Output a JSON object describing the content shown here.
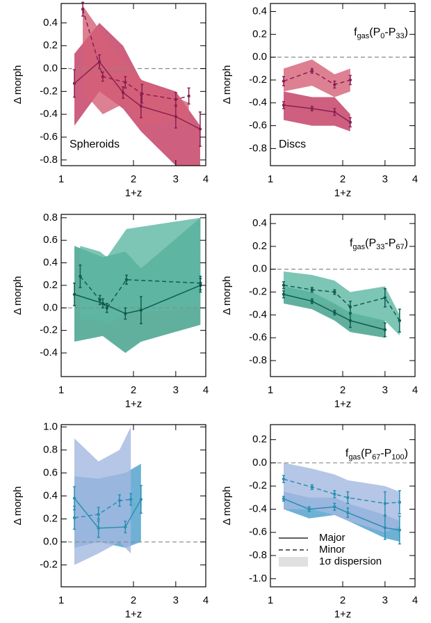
{
  "chart_data": [
    {
      "type": "line",
      "xlabel": "1+z",
      "ylabel": "Δ morph",
      "log_x": true,
      "zero_line": true,
      "xlim": [
        1,
        4
      ],
      "xticks": [
        1,
        2,
        3,
        4
      ],
      "ylim": [
        -0.85,
        0.57
      ],
      "yticks": [
        0.4,
        0.2,
        {
          "value": 0,
          "label": "0.0"
        },
        -0.2,
        -0.4,
        -0.6,
        -0.8
      ],
      "labels": [
        {
          "corner": "lower left",
          "runs": [
            {
              "text": "Spheroids"
            }
          ]
        }
      ],
      "series": [
        {
          "style": "solid",
          "color": "#8a1f52",
          "band_color": "#c2375e",
          "x": [
            1.135,
            1.443,
            1.81,
            2.15,
            3.0,
            3.79
          ],
          "values": [
            -0.13,
            0.06,
            -0.21,
            -0.33,
            -0.42,
            -0.53
          ],
          "errors": [
            0.12,
            0.06,
            0.05,
            0.1,
            0.1,
            0.15
          ],
          "band_lower": [
            -0.5,
            -0.2,
            -0.35,
            -0.55,
            -0.85,
            -0.85
          ],
          "band_upper": [
            0.13,
            0.4,
            0.2,
            -0.1,
            -0.2,
            -0.5
          ]
        },
        {
          "style": "dashed",
          "color": "#8a1f52",
          "band_color": "#d46077",
          "x": [
            1.23,
            1.49,
            1.85,
            2.17,
            3.0,
            3.4
          ],
          "values": [
            0.52,
            -0.07,
            -0.12,
            -0.22,
            -0.27,
            -0.24
          ],
          "errors": [
            0.06,
            0.04,
            0.05,
            0.08,
            0.06,
            0.07
          ],
          "band_lower": [
            -0.2,
            -0.4,
            -0.3,
            -0.5,
            -0.45,
            -0.5
          ],
          "band_upper": [
            0.55,
            0.3,
            0.05,
            -0.1,
            -0.25,
            -0.3
          ]
        }
      ]
    },
    {
      "type": "line",
      "xlabel": "1+z",
      "ylabel": "Δ morph",
      "log_x": true,
      "zero_line": true,
      "xlim": [
        1,
        4
      ],
      "xticks": [
        1,
        2,
        3,
        4
      ],
      "ylim": [
        -0.95,
        0.47
      ],
      "yticks": [
        0.4,
        0.2,
        {
          "value": 0,
          "label": "0.0"
        },
        -0.2,
        -0.4,
        -0.6,
        -0.8
      ],
      "labels": [
        {
          "corner": "lower left",
          "runs": [
            {
              "text": "Discs"
            }
          ]
        },
        {
          "corner": "upper right",
          "runs": [
            {
              "text": "f"
            },
            {
              "text": "gas",
              "sub": true
            },
            {
              "text": "(P"
            },
            {
              "text": "0",
              "sub": true
            },
            {
              "text": "-P"
            },
            {
              "text": "33",
              "sub": true
            },
            {
              "text": ")"
            }
          ]
        }
      ],
      "series": [
        {
          "style": "solid",
          "color": "#8a1f52",
          "band_color": "#c2375e",
          "x": [
            1.135,
            1.49,
            1.85,
            2.15
          ],
          "values": [
            -0.42,
            -0.45,
            -0.48,
            -0.57
          ],
          "errors": [
            0.03,
            0.02,
            0.03,
            0.04
          ],
          "band_lower": [
            -0.55,
            -0.6,
            -0.6,
            -0.65
          ],
          "band_upper": [
            -0.3,
            -0.35,
            -0.35,
            -0.5
          ]
        },
        {
          "style": "dashed",
          "color": "#8a1f52",
          "band_color": "#d46077",
          "x": [
            1.135,
            1.49,
            1.85,
            2.15
          ],
          "values": [
            -0.21,
            -0.12,
            -0.24,
            -0.2
          ],
          "errors": [
            0.04,
            0.02,
            0.03,
            0.04
          ],
          "band_lower": [
            -0.3,
            -0.25,
            -0.35,
            -0.3
          ],
          "band_upper": [
            -0.1,
            -0.02,
            -0.15,
            -0.1
          ]
        }
      ]
    },
    {
      "type": "line",
      "xlabel": "1+z",
      "ylabel": "Δ morph",
      "log_x": true,
      "zero_line": true,
      "xlim": [
        1,
        4
      ],
      "xticks": [
        1,
        2,
        3,
        4
      ],
      "ylim": [
        -0.61,
        0.83
      ],
      "yticks": [
        0.8,
        0.6,
        0.4,
        0.2,
        {
          "value": 0,
          "label": "0.0"
        },
        -0.2,
        -0.4
      ],
      "labels": [],
      "series": [
        {
          "style": "solid",
          "color": "#0f5c4f",
          "band_color": "#3a9c86",
          "x": [
            1.135,
            1.49,
            1.85,
            2.15,
            3.8
          ],
          "values": [
            0.12,
            0.04,
            -0.05,
            -0.02,
            0.2
          ],
          "errors": [
            0.1,
            0.04,
            0.05,
            0.12,
            0.06
          ],
          "band_lower": [
            -0.3,
            -0.25,
            -0.4,
            -0.3,
            -0.15
          ],
          "band_upper": [
            0.55,
            0.45,
            0.5,
            0.35,
            0.8
          ]
        },
        {
          "style": "dashed",
          "color": "#0f5c4f",
          "band_color": "#5db6a2",
          "x": [
            1.2,
            1.45,
            1.55,
            1.87,
            3.8
          ],
          "values": [
            0.28,
            0.07,
            0.0,
            0.25,
            0.22
          ],
          "errors": [
            0.1,
            0.04,
            0.04,
            0.04,
            0.06
          ],
          "band_lower": [
            -0.1,
            -0.1,
            -0.15,
            -0.05,
            0.0
          ],
          "band_upper": [
            0.55,
            0.5,
            0.45,
            0.7,
            0.8
          ]
        }
      ]
    },
    {
      "type": "line",
      "xlabel": "1+z",
      "ylabel": "Δ morph",
      "log_x": true,
      "zero_line": true,
      "xlim": [
        1,
        4
      ],
      "xticks": [
        1,
        2,
        3,
        4
      ],
      "ylim": [
        -0.94,
        0.48
      ],
      "yticks": [
        0.4,
        0.2,
        {
          "value": 0,
          "label": "0.0"
        },
        -0.2,
        -0.4,
        -0.6,
        -0.8
      ],
      "labels": [
        {
          "corner": "upper right",
          "runs": [
            {
              "text": "f"
            },
            {
              "text": "gas",
              "sub": true
            },
            {
              "text": "(P"
            },
            {
              "text": "33",
              "sub": true
            },
            {
              "text": "-P"
            },
            {
              "text": "67",
              "sub": true
            },
            {
              "text": ")"
            }
          ]
        }
      ],
      "series": [
        {
          "style": "solid",
          "color": "#0f5c4f",
          "band_color": "#3a9c86",
          "x": [
            1.135,
            1.49,
            1.85,
            2.15,
            3.0
          ],
          "values": [
            -0.22,
            -0.28,
            -0.38,
            -0.45,
            -0.53
          ],
          "errors": [
            0.03,
            0.02,
            0.02,
            0.06,
            0.06
          ],
          "band_lower": [
            -0.3,
            -0.35,
            -0.45,
            -0.55,
            -0.6
          ],
          "band_upper": [
            -0.15,
            -0.2,
            -0.3,
            -0.38,
            -0.45
          ]
        },
        {
          "style": "dashed",
          "color": "#0f5c4f",
          "band_color": "#5db6a2",
          "x": [
            1.135,
            1.49,
            1.85,
            2.15,
            3.0,
            3.45
          ],
          "values": [
            -0.14,
            -0.18,
            -0.2,
            -0.33,
            -0.25,
            -0.45
          ],
          "errors": [
            0.03,
            0.02,
            0.02,
            0.05,
            0.08,
            0.1
          ],
          "band_lower": [
            -0.25,
            -0.3,
            -0.3,
            -0.45,
            -0.45,
            -0.58
          ],
          "band_upper": [
            -0.02,
            -0.05,
            -0.1,
            -0.2,
            -0.15,
            -0.4
          ]
        }
      ]
    },
    {
      "type": "line",
      "xlabel": "1+z",
      "ylabel": "Δ morph",
      "log_x": true,
      "zero_line": true,
      "xlim": [
        1,
        4
      ],
      "xticks": [
        1,
        2,
        3,
        4
      ],
      "ylim": [
        -0.39,
        1.02
      ],
      "yticks": [
        {
          "value": 1,
          "label": "1.0"
        },
        0.8,
        0.6,
        0.4,
        0.2,
        {
          "value": 0,
          "label": "0.0"
        },
        -0.2
      ],
      "labels": [],
      "series": [
        {
          "style": "solid",
          "color": "#2a8fb0",
          "band_color": "#4a9ecb",
          "x": [
            1.135,
            1.43,
            1.85,
            2.15
          ],
          "values": [
            0.38,
            0.12,
            0.13,
            0.37
          ],
          "errors": [
            0.1,
            0.08,
            0.05,
            0.12
          ],
          "band_lower": [
            -0.05,
            0.0,
            -0.05,
            0.0
          ],
          "band_upper": [
            0.57,
            0.55,
            0.6,
            0.68
          ]
        },
        {
          "style": "dashed",
          "color": "#2a8fb0",
          "band_color": "#a3b8e0",
          "x": [
            1.135,
            1.43,
            1.75,
            1.95
          ],
          "values": [
            0.21,
            0.24,
            0.36,
            0.37
          ],
          "errors": [
            0.1,
            0.06,
            0.05,
            0.05
          ],
          "band_lower": [
            -0.2,
            -0.1,
            0.0,
            -0.1
          ],
          "band_upper": [
            0.9,
            0.7,
            0.8,
            1.0
          ]
        }
      ]
    },
    {
      "type": "line",
      "xlabel": "1+z",
      "ylabel": "Δ morph",
      "log_x": true,
      "zero_line": true,
      "xlim": [
        1,
        4
      ],
      "xticks": [
        1,
        2,
        3,
        4
      ],
      "ylim": [
        -1.07,
        0.33
      ],
      "yticks": [
        0.2,
        {
          "value": 0,
          "label": "0.0"
        },
        -0.2,
        -0.4,
        -0.6,
        -0.8,
        {
          "value": -1,
          "label": "-1.0"
        }
      ],
      "labels": [
        {
          "corner": "upper right",
          "runs": [
            {
              "text": "f"
            },
            {
              "text": "gas",
              "sub": true
            },
            {
              "text": "(P"
            },
            {
              "text": "67",
              "sub": true
            },
            {
              "text": "-P"
            },
            {
              "text": "100",
              "sub": true
            },
            {
              "text": ")"
            }
          ]
        }
      ],
      "legend": "lower left",
      "band_label": "1σ dispersion",
      "legend_band_color": "#e0e0e0",
      "series": [
        {
          "name": "Major",
          "style": "solid",
          "color": "#2a8fb0",
          "band_color": "#4a9ecb",
          "x": [
            1.135,
            1.45,
            1.85,
            2.1,
            3.0,
            3.45
          ],
          "values": [
            -0.31,
            -0.4,
            -0.38,
            -0.43,
            -0.56,
            -0.58
          ],
          "errors": [
            0.02,
            0.02,
            0.03,
            0.04,
            0.1,
            0.12
          ],
          "band_lower": [
            -0.4,
            -0.48,
            -0.45,
            -0.5,
            -0.65,
            -0.68
          ],
          "band_upper": [
            -0.25,
            -0.3,
            -0.3,
            -0.35,
            -0.45,
            -0.5
          ]
        },
        {
          "name": "Minor",
          "style": "dashed",
          "color": "#2a8fb0",
          "band_color": "#a3b8e0",
          "x": [
            1.135,
            1.49,
            1.85,
            2.1,
            3.0,
            3.45
          ],
          "values": [
            -0.14,
            -0.21,
            -0.27,
            -0.3,
            -0.35,
            -0.34
          ],
          "errors": [
            0.03,
            0.02,
            0.03,
            0.05,
            0.1,
            0.1
          ],
          "band_lower": [
            -0.4,
            -0.4,
            -0.45,
            -0.5,
            -0.6,
            -0.55
          ],
          "band_upper": [
            0.0,
            -0.05,
            -0.1,
            -0.15,
            -0.2,
            -0.25
          ]
        }
      ]
    }
  ]
}
